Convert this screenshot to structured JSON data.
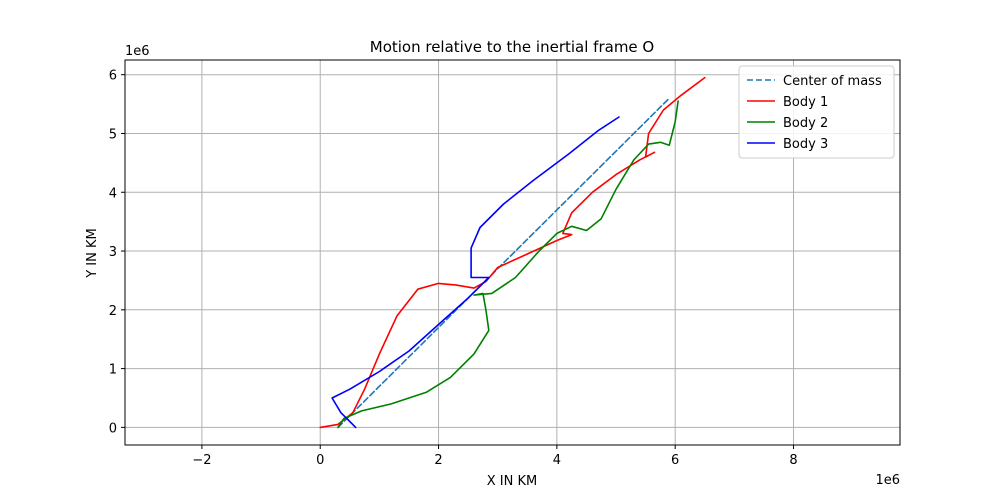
{
  "chart_data": {
    "type": "line",
    "title": "Motion relative to the inertial frame O",
    "xlabel": "X IN KM",
    "ylabel": "Y IN KM",
    "x_offset_label": "1e6",
    "y_offset_label": "1e6",
    "xlim": [
      -3.3,
      9.8
    ],
    "ylim": [
      -0.3,
      6.25
    ],
    "xticks": [
      -2,
      0,
      2,
      4,
      6,
      8
    ],
    "yticks": [
      0,
      1,
      2,
      3,
      4,
      5,
      6
    ],
    "grid": true,
    "legend_placement": "top-right",
    "series": [
      {
        "name": "Center of mass",
        "color": "#1f77b4",
        "dashed": true,
        "points": [
          [
            0.3,
            0.0
          ],
          [
            5.9,
            5.6
          ]
        ]
      },
      {
        "name": "Body 1",
        "color": "#ff0000",
        "dashed": false,
        "points": [
          [
            0.0,
            0.0
          ],
          [
            0.3,
            0.05
          ],
          [
            0.55,
            0.25
          ],
          [
            0.75,
            0.65
          ],
          [
            1.0,
            1.25
          ],
          [
            1.3,
            1.9
          ],
          [
            1.65,
            2.35
          ],
          [
            2.0,
            2.45
          ],
          [
            2.3,
            2.42
          ],
          [
            2.6,
            2.37
          ],
          [
            2.8,
            2.48
          ],
          [
            3.0,
            2.72
          ],
          [
            3.5,
            2.95
          ],
          [
            4.0,
            3.18
          ],
          [
            4.25,
            3.28
          ],
          [
            4.1,
            3.3
          ],
          [
            4.25,
            3.65
          ],
          [
            4.6,
            4.0
          ],
          [
            5.0,
            4.3
          ],
          [
            5.4,
            4.55
          ],
          [
            5.65,
            4.68
          ],
          [
            5.5,
            4.6
          ],
          [
            5.55,
            5.0
          ],
          [
            5.8,
            5.4
          ],
          [
            6.1,
            5.65
          ],
          [
            6.5,
            5.95
          ]
        ]
      },
      {
        "name": "Body 2",
        "color": "#008000",
        "dashed": false,
        "points": [
          [
            0.3,
            0.0
          ],
          [
            0.4,
            0.15
          ],
          [
            0.7,
            0.28
          ],
          [
            1.2,
            0.4
          ],
          [
            1.8,
            0.6
          ],
          [
            2.2,
            0.85
          ],
          [
            2.6,
            1.25
          ],
          [
            2.85,
            1.65
          ],
          [
            2.8,
            2.0
          ],
          [
            2.75,
            2.28
          ],
          [
            2.6,
            2.25
          ],
          [
            2.9,
            2.28
          ],
          [
            3.3,
            2.55
          ],
          [
            3.7,
            3.0
          ],
          [
            4.0,
            3.3
          ],
          [
            4.25,
            3.42
          ],
          [
            4.5,
            3.35
          ],
          [
            4.75,
            3.55
          ],
          [
            5.0,
            4.05
          ],
          [
            5.3,
            4.55
          ],
          [
            5.55,
            4.82
          ],
          [
            5.75,
            4.85
          ],
          [
            5.9,
            4.8
          ],
          [
            6.0,
            5.2
          ],
          [
            6.05,
            5.55
          ]
        ]
      },
      {
        "name": "Body 3",
        "color": "#0000ff",
        "dashed": false,
        "points": [
          [
            0.6,
            0.0
          ],
          [
            0.5,
            0.1
          ],
          [
            0.35,
            0.25
          ],
          [
            0.2,
            0.5
          ],
          [
            0.5,
            0.65
          ],
          [
            1.0,
            0.95
          ],
          [
            1.5,
            1.3
          ],
          [
            2.0,
            1.75
          ],
          [
            2.5,
            2.2
          ],
          [
            2.85,
            2.55
          ],
          [
            2.55,
            2.55
          ],
          [
            2.55,
            3.05
          ],
          [
            2.7,
            3.4
          ],
          [
            3.1,
            3.8
          ],
          [
            3.6,
            4.2
          ],
          [
            4.2,
            4.65
          ],
          [
            4.7,
            5.05
          ],
          [
            5.05,
            5.28
          ]
        ]
      }
    ]
  }
}
